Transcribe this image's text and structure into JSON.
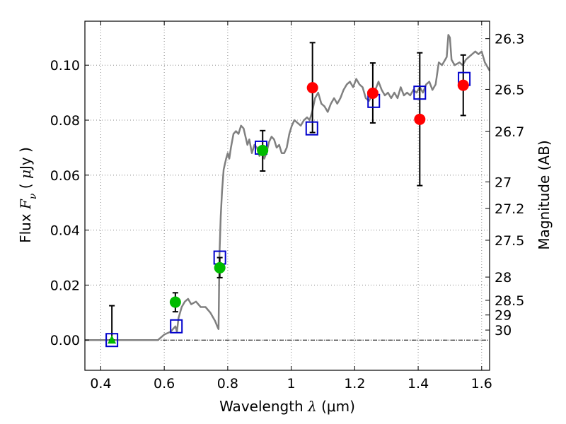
{
  "chart_data": {
    "type": "scatter",
    "xlabel": {
      "prefix": "Wavelength  ",
      "symbol": "λ",
      "unit": " (μm)"
    },
    "ylabel": {
      "prefix": "Flux  ",
      "symbol": "F",
      "subscript": "ν",
      "unit_open": "  ( ",
      "unit_mu": "μ",
      "unit_rest": "Jy )"
    },
    "y2label": "Magnitude (AB)",
    "xlim": [
      0.35,
      1.625
    ],
    "ylim": [
      -0.011,
      0.116
    ],
    "grid": true,
    "x_ticks": [
      {
        "v": 0.4,
        "label": "0.4"
      },
      {
        "v": 0.6,
        "label": "0.6"
      },
      {
        "v": 0.8,
        "label": "0.8"
      },
      {
        "v": 1.0,
        "label": "1"
      },
      {
        "v": 1.2,
        "label": "1.2"
      },
      {
        "v": 1.4,
        "label": "1.4"
      },
      {
        "v": 1.6,
        "label": "1.6"
      }
    ],
    "y_ticks": [
      {
        "v": 0.0,
        "label": "0.00"
      },
      {
        "v": 0.02,
        "label": "0.02"
      },
      {
        "v": 0.04,
        "label": "0.04"
      },
      {
        "v": 0.06,
        "label": "0.06"
      },
      {
        "v": 0.08,
        "label": "0.08"
      },
      {
        "v": 0.1,
        "label": "0.10"
      }
    ],
    "y2_ticks": [
      {
        "mag": 26.3,
        "label": "26.3"
      },
      {
        "mag": 26.5,
        "label": "26.5"
      },
      {
        "mag": 26.7,
        "label": "26.7"
      },
      {
        "mag": 27,
        "label": "27"
      },
      {
        "mag": 27.2,
        "label": "27.2"
      },
      {
        "mag": 27.5,
        "label": "27.5"
      },
      {
        "mag": 28,
        "label": "28"
      },
      {
        "mag": 28.5,
        "label": "28.5"
      },
      {
        "mag": 29,
        "label": "29"
      },
      {
        "mag": 30,
        "label": "30"
      }
    ],
    "colors": {
      "model": "#808080",
      "green": "#00bb00",
      "red": "#ff0000",
      "square": "#0000cc",
      "grid": "#888888"
    },
    "model_spectrum": [
      [
        0.35,
        0.0
      ],
      [
        0.58,
        0.0
      ],
      [
        0.6,
        0.002
      ],
      [
        0.62,
        0.003
      ],
      [
        0.635,
        0.005
      ],
      [
        0.64,
        0.003
      ],
      [
        0.645,
        0.008
      ],
      [
        0.655,
        0.012
      ],
      [
        0.665,
        0.014
      ],
      [
        0.675,
        0.015
      ],
      [
        0.685,
        0.013
      ],
      [
        0.7,
        0.014
      ],
      [
        0.715,
        0.012
      ],
      [
        0.73,
        0.012
      ],
      [
        0.745,
        0.01
      ],
      [
        0.76,
        0.007
      ],
      [
        0.767,
        0.005
      ],
      [
        0.771,
        0.004
      ],
      [
        0.774,
        0.031
      ],
      [
        0.778,
        0.045
      ],
      [
        0.782,
        0.054
      ],
      [
        0.787,
        0.062
      ],
      [
        0.795,
        0.066
      ],
      [
        0.8,
        0.068
      ],
      [
        0.805,
        0.066
      ],
      [
        0.81,
        0.07
      ],
      [
        0.818,
        0.075
      ],
      [
        0.826,
        0.076
      ],
      [
        0.834,
        0.075
      ],
      [
        0.842,
        0.078
      ],
      [
        0.85,
        0.077
      ],
      [
        0.856,
        0.074
      ],
      [
        0.862,
        0.071
      ],
      [
        0.868,
        0.073
      ],
      [
        0.876,
        0.068
      ],
      [
        0.884,
        0.071
      ],
      [
        0.892,
        0.07
      ],
      [
        0.9,
        0.067
      ],
      [
        0.908,
        0.07
      ],
      [
        0.915,
        0.066
      ],
      [
        0.922,
        0.068
      ],
      [
        0.93,
        0.072
      ],
      [
        0.938,
        0.074
      ],
      [
        0.946,
        0.073
      ],
      [
        0.954,
        0.07
      ],
      [
        0.962,
        0.071
      ],
      [
        0.97,
        0.068
      ],
      [
        0.978,
        0.068
      ],
      [
        0.986,
        0.07
      ],
      [
        0.994,
        0.075
      ],
      [
        1.002,
        0.078
      ],
      [
        1.01,
        0.08
      ],
      [
        1.02,
        0.079
      ],
      [
        1.03,
        0.078
      ],
      [
        1.04,
        0.08
      ],
      [
        1.05,
        0.081
      ],
      [
        1.058,
        0.08
      ],
      [
        1.066,
        0.083
      ],
      [
        1.075,
        0.088
      ],
      [
        1.085,
        0.09
      ],
      [
        1.095,
        0.086
      ],
      [
        1.105,
        0.085
      ],
      [
        1.115,
        0.083
      ],
      [
        1.125,
        0.086
      ],
      [
        1.135,
        0.088
      ],
      [
        1.145,
        0.086
      ],
      [
        1.155,
        0.088
      ],
      [
        1.165,
        0.091
      ],
      [
        1.175,
        0.093
      ],
      [
        1.185,
        0.094
      ],
      [
        1.195,
        0.092
      ],
      [
        1.205,
        0.095
      ],
      [
        1.215,
        0.093
      ],
      [
        1.225,
        0.092
      ],
      [
        1.235,
        0.088
      ],
      [
        1.245,
        0.087
      ],
      [
        1.255,
        0.089
      ],
      [
        1.265,
        0.091
      ],
      [
        1.275,
        0.094
      ],
      [
        1.285,
        0.091
      ],
      [
        1.295,
        0.089
      ],
      [
        1.305,
        0.09
      ],
      [
        1.315,
        0.088
      ],
      [
        1.325,
        0.09
      ],
      [
        1.335,
        0.088
      ],
      [
        1.345,
        0.092
      ],
      [
        1.355,
        0.089
      ],
      [
        1.365,
        0.09
      ],
      [
        1.375,
        0.089
      ],
      [
        1.385,
        0.091
      ],
      [
        1.395,
        0.09
      ],
      [
        1.405,
        0.092
      ],
      [
        1.415,
        0.09
      ],
      [
        1.425,
        0.093
      ],
      [
        1.435,
        0.094
      ],
      [
        1.445,
        0.091
      ],
      [
        1.455,
        0.093
      ],
      [
        1.465,
        0.101
      ],
      [
        1.475,
        0.1
      ],
      [
        1.485,
        0.102
      ],
      [
        1.49,
        0.103
      ],
      [
        1.495,
        0.111
      ],
      [
        1.5,
        0.11
      ],
      [
        1.505,
        0.102
      ],
      [
        1.515,
        0.1
      ],
      [
        1.53,
        0.101
      ],
      [
        1.54,
        0.1
      ],
      [
        1.55,
        0.102
      ],
      [
        1.56,
        0.103
      ],
      [
        1.57,
        0.104
      ],
      [
        1.58,
        0.105
      ],
      [
        1.59,
        0.104
      ],
      [
        1.6,
        0.105
      ],
      [
        1.61,
        0.101
      ],
      [
        1.625,
        0.098
      ]
    ],
    "squares": [
      [
        0.435,
        0.0
      ],
      [
        0.638,
        0.005
      ],
      [
        0.775,
        0.03
      ],
      [
        0.905,
        0.07
      ],
      [
        1.065,
        0.077
      ],
      [
        1.26,
        0.087
      ],
      [
        1.405,
        0.09
      ],
      [
        1.545,
        0.095
      ]
    ],
    "triangle": {
      "x": 0.435,
      "y": 0.0,
      "err": [
        0.0,
        0.0125
      ]
    },
    "green_points": [
      {
        "x": 0.635,
        "y": 0.0138,
        "err": [
          0.0103,
          0.0172
        ]
      },
      {
        "x": 0.775,
        "y": 0.0263,
        "err": [
          0.0227,
          0.03
        ]
      },
      {
        "x": 0.91,
        "y": 0.069,
        "err": [
          0.0615,
          0.0762
        ]
      }
    ],
    "red_points": [
      {
        "x": 1.067,
        "y": 0.0918,
        "err": [
          0.0755,
          0.1082
        ]
      },
      {
        "x": 1.257,
        "y": 0.0898,
        "err": [
          0.079,
          0.1008
        ]
      },
      {
        "x": 1.405,
        "y": 0.0803,
        "err": [
          0.0562,
          0.1045
        ]
      },
      {
        "x": 1.542,
        "y": 0.0927,
        "err": [
          0.0817,
          0.1037
        ]
      }
    ]
  }
}
